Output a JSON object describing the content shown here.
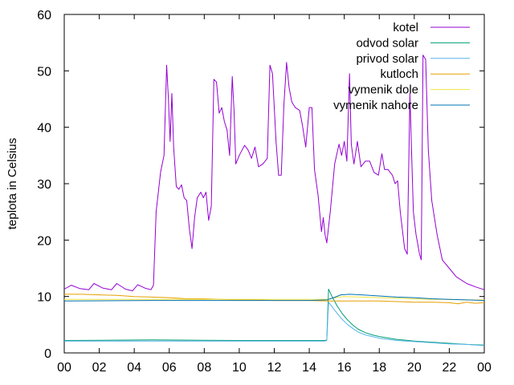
{
  "chart_data": {
    "type": "line",
    "ylabel": "teplota in Celsius",
    "xlim": [
      0,
      24
    ],
    "ylim": [
      0,
      60
    ],
    "xticks": [
      "00",
      "02",
      "04",
      "06",
      "08",
      "10",
      "12",
      "14",
      "16",
      "18",
      "20",
      "22",
      "00"
    ],
    "yticks": [
      "0",
      "10",
      "20",
      "30",
      "40",
      "50",
      "60"
    ],
    "legend_position": "top-right",
    "grid": false,
    "series": [
      {
        "name": "kotel",
        "color": "#9400d3",
        "points": [
          [
            0.0,
            11.3
          ],
          [
            0.4,
            12.0
          ],
          [
            0.9,
            11.4
          ],
          [
            1.4,
            11.2
          ],
          [
            1.7,
            12.3
          ],
          [
            2.2,
            11.5
          ],
          [
            2.7,
            11.2
          ],
          [
            3.0,
            12.3
          ],
          [
            3.5,
            11.3
          ],
          [
            3.9,
            11.0
          ],
          [
            4.2,
            12.1
          ],
          [
            4.6,
            11.5
          ],
          [
            4.95,
            11.2
          ],
          [
            5.1,
            12.0
          ],
          [
            5.25,
            25.0
          ],
          [
            5.5,
            32.0
          ],
          [
            5.7,
            35.0
          ],
          [
            5.85,
            51.0
          ],
          [
            5.95,
            45.0
          ],
          [
            6.05,
            37.5
          ],
          [
            6.15,
            46.0
          ],
          [
            6.25,
            36.5
          ],
          [
            6.4,
            29.5
          ],
          [
            6.55,
            29.0
          ],
          [
            6.7,
            29.8
          ],
          [
            6.85,
            27.5
          ],
          [
            7.0,
            27.0
          ],
          [
            7.15,
            22.0
          ],
          [
            7.3,
            18.5
          ],
          [
            7.45,
            24.0
          ],
          [
            7.6,
            27.5
          ],
          [
            7.8,
            28.5
          ],
          [
            7.95,
            27.5
          ],
          [
            8.1,
            28.5
          ],
          [
            8.25,
            23.5
          ],
          [
            8.4,
            26.0
          ],
          [
            8.55,
            48.5
          ],
          [
            8.7,
            48.0
          ],
          [
            8.85,
            42.5
          ],
          [
            9.0,
            43.5
          ],
          [
            9.15,
            41.0
          ],
          [
            9.3,
            39.5
          ],
          [
            9.45,
            35.0
          ],
          [
            9.6,
            49.0
          ],
          [
            9.7,
            43.0
          ],
          [
            9.8,
            33.5
          ],
          [
            10.0,
            35.0
          ],
          [
            10.3,
            36.8
          ],
          [
            10.5,
            36.0
          ],
          [
            10.7,
            34.5
          ],
          [
            10.9,
            36.5
          ],
          [
            11.1,
            33.0
          ],
          [
            11.35,
            33.5
          ],
          [
            11.6,
            34.5
          ],
          [
            11.75,
            51.0
          ],
          [
            11.9,
            49.5
          ],
          [
            12.1,
            37.5
          ],
          [
            12.25,
            31.5
          ],
          [
            12.4,
            31.5
          ],
          [
            12.55,
            44.0
          ],
          [
            12.7,
            51.5
          ],
          [
            12.85,
            47.0
          ],
          [
            13.0,
            44.5
          ],
          [
            13.2,
            43.5
          ],
          [
            13.45,
            43.0
          ],
          [
            13.6,
            40.5
          ],
          [
            13.8,
            36.5
          ],
          [
            14.0,
            43.5
          ],
          [
            14.15,
            43.5
          ],
          [
            14.3,
            32.5
          ],
          [
            14.5,
            28.0
          ],
          [
            14.7,
            21.5
          ],
          [
            14.8,
            24.0
          ],
          [
            14.9,
            21.0
          ],
          [
            15.0,
            19.5
          ],
          [
            15.2,
            25.0
          ],
          [
            15.45,
            33.5
          ],
          [
            15.7,
            37.0
          ],
          [
            15.85,
            35.0
          ],
          [
            16.0,
            37.5
          ],
          [
            16.15,
            34.0
          ],
          [
            16.3,
            49.5
          ],
          [
            16.4,
            37.0
          ],
          [
            16.55,
            33.5
          ],
          [
            16.75,
            37.5
          ],
          [
            16.95,
            33.0
          ],
          [
            17.2,
            34.0
          ],
          [
            17.45,
            34.0
          ],
          [
            17.7,
            32.0
          ],
          [
            17.95,
            31.5
          ],
          [
            18.15,
            35.3
          ],
          [
            18.3,
            32.5
          ],
          [
            18.5,
            32.5
          ],
          [
            18.75,
            31.5
          ],
          [
            18.9,
            30.0
          ],
          [
            19.05,
            30.5
          ],
          [
            19.2,
            25.0
          ],
          [
            19.45,
            18.5
          ],
          [
            19.6,
            17.5
          ],
          [
            19.75,
            46.0
          ],
          [
            19.85,
            35.0
          ],
          [
            19.95,
            25.0
          ],
          [
            20.1,
            21.0
          ],
          [
            20.3,
            17.5
          ],
          [
            20.4,
            16.5
          ],
          [
            20.5,
            52.8
          ],
          [
            20.65,
            52.0
          ],
          [
            20.8,
            36.0
          ],
          [
            21.0,
            27.0
          ],
          [
            21.3,
            21.0
          ],
          [
            21.6,
            16.5
          ],
          [
            22.0,
            15.0
          ],
          [
            22.4,
            13.5
          ],
          [
            23.0,
            12.3
          ],
          [
            23.5,
            11.7
          ],
          [
            24.0,
            11.2
          ]
        ]
      },
      {
        "name": "odvod solar",
        "color": "#009e73",
        "points": [
          [
            0.0,
            2.2
          ],
          [
            5.0,
            2.3
          ],
          [
            10.0,
            2.2
          ],
          [
            14.9,
            2.2
          ],
          [
            15.0,
            2.3
          ],
          [
            15.1,
            11.3
          ],
          [
            15.3,
            10.0
          ],
          [
            15.6,
            8.3
          ],
          [
            15.9,
            6.9
          ],
          [
            16.2,
            5.8
          ],
          [
            16.5,
            4.9
          ],
          [
            16.8,
            4.2
          ],
          [
            17.2,
            3.6
          ],
          [
            17.6,
            3.2
          ],
          [
            18.0,
            2.9
          ],
          [
            19.0,
            2.4
          ],
          [
            20.0,
            2.1
          ],
          [
            21.0,
            1.9
          ],
          [
            22.0,
            1.7
          ],
          [
            23.0,
            1.5
          ],
          [
            24.0,
            1.4
          ]
        ]
      },
      {
        "name": "privod solar",
        "color": "#56b4e9",
        "points": [
          [
            0.0,
            2.1
          ],
          [
            5.0,
            2.1
          ],
          [
            10.0,
            2.1
          ],
          [
            14.9,
            2.1
          ],
          [
            15.0,
            2.2
          ],
          [
            15.1,
            9.0
          ],
          [
            15.3,
            8.2
          ],
          [
            15.6,
            7.0
          ],
          [
            15.9,
            5.9
          ],
          [
            16.2,
            5.0
          ],
          [
            16.5,
            4.3
          ],
          [
            16.8,
            3.7
          ],
          [
            17.2,
            3.2
          ],
          [
            17.6,
            2.9
          ],
          [
            18.0,
            2.6
          ],
          [
            19.0,
            2.2
          ],
          [
            20.0,
            2.0
          ],
          [
            21.0,
            1.8
          ],
          [
            22.0,
            1.6
          ],
          [
            23.0,
            1.5
          ],
          [
            24.0,
            1.3
          ]
        ]
      },
      {
        "name": "kutloch",
        "color": "#e69f00",
        "points": [
          [
            0.0,
            10.4
          ],
          [
            1.0,
            10.4
          ],
          [
            2.0,
            10.3
          ],
          [
            3.0,
            10.2
          ],
          [
            4.0,
            10.0
          ],
          [
            5.0,
            9.9
          ],
          [
            6.0,
            9.8
          ],
          [
            7.0,
            9.6
          ],
          [
            8.0,
            9.6
          ],
          [
            9.0,
            9.5
          ],
          [
            10.0,
            9.4
          ],
          [
            11.0,
            9.4
          ],
          [
            12.0,
            9.3
          ],
          [
            13.0,
            9.3
          ],
          [
            14.0,
            9.3
          ],
          [
            15.0,
            9.2
          ],
          [
            16.0,
            9.2
          ],
          [
            17.0,
            9.2
          ],
          [
            18.0,
            9.2
          ],
          [
            19.0,
            9.1
          ],
          [
            20.0,
            9.0
          ],
          [
            21.0,
            9.0
          ],
          [
            22.0,
            8.9
          ],
          [
            22.5,
            8.7
          ],
          [
            23.0,
            9.0
          ],
          [
            23.5,
            8.8
          ],
          [
            24.0,
            8.9
          ]
        ]
      },
      {
        "name": "vymenik dole",
        "color": "#f0e442",
        "points": [
          [
            0.0,
            9.5
          ],
          [
            5.0,
            9.5
          ],
          [
            10.0,
            9.5
          ],
          [
            14.0,
            9.5
          ],
          [
            15.0,
            9.5
          ],
          [
            15.5,
            9.8
          ],
          [
            16.0,
            10.0
          ],
          [
            17.0,
            9.9
          ],
          [
            18.0,
            9.8
          ],
          [
            19.0,
            9.7
          ],
          [
            20.0,
            9.6
          ],
          [
            21.0,
            9.5
          ],
          [
            22.0,
            9.5
          ],
          [
            23.0,
            9.4
          ],
          [
            24.0,
            9.4
          ]
        ]
      },
      {
        "name": "vymenik nahore",
        "color": "#0072b2",
        "points": [
          [
            0.0,
            9.2
          ],
          [
            5.0,
            9.3
          ],
          [
            10.0,
            9.3
          ],
          [
            14.0,
            9.3
          ],
          [
            15.0,
            9.4
          ],
          [
            15.4,
            9.8
          ],
          [
            15.8,
            10.3
          ],
          [
            16.3,
            10.4
          ],
          [
            17.0,
            10.3
          ],
          [
            18.0,
            10.1
          ],
          [
            19.0,
            9.9
          ],
          [
            20.0,
            9.8
          ],
          [
            21.0,
            9.6
          ],
          [
            22.0,
            9.5
          ],
          [
            23.0,
            9.4
          ],
          [
            24.0,
            9.3
          ]
        ]
      }
    ]
  }
}
